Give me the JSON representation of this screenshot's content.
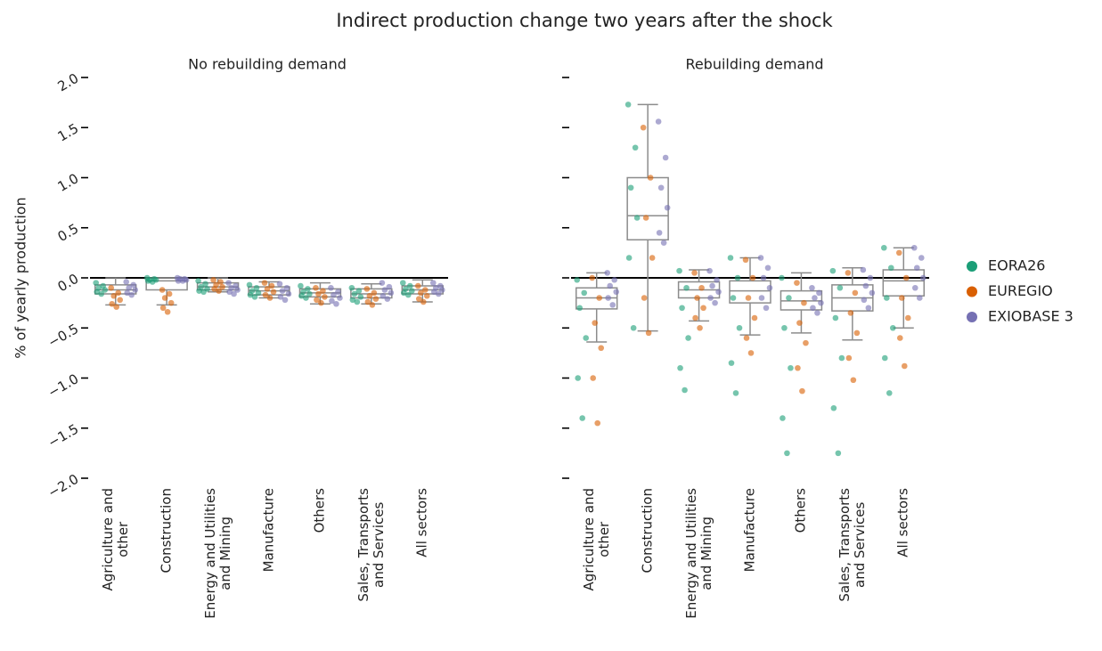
{
  "title": "Indirect production change two years after the shock",
  "chart_data": [
    {
      "type": "box_strip",
      "title": "No rebuilding demand",
      "ylabel": "% of yearly production",
      "categories": [
        "Agriculture and\nother",
        "Construction",
        "Energy and Utilities\nand Mining",
        "Manufacture",
        "Others",
        "Sales, Transports\nand Services",
        "All sectors"
      ],
      "ylim": [
        -2,
        2
      ],
      "yticks": [
        {
          "value": 2,
          "label": "2.0"
        },
        {
          "value": 1.5,
          "label": "1.5"
        },
        {
          "value": 1,
          "label": "1.0"
        },
        {
          "value": 0.5,
          "label": "0.5"
        },
        {
          "value": 0,
          "label": "0.0"
        },
        {
          "value": -0.5,
          "label": "−0.5"
        },
        {
          "value": -1,
          "label": "−1.0"
        },
        {
          "value": -1.5,
          "label": "−1.5"
        },
        {
          "value": -2,
          "label": "−2.0"
        }
      ],
      "zero_line": true,
      "boxes": [
        [
          -0.27,
          -0.16,
          -0.12,
          -0.07,
          0.0
        ],
        [
          -0.27,
          -0.12,
          -0.03,
          0.0,
          0.0
        ],
        [
          -0.14,
          -0.12,
          -0.09,
          -0.05,
          0.0
        ],
        [
          -0.2,
          -0.17,
          -0.13,
          -0.09,
          -0.04
        ],
        [
          -0.26,
          -0.19,
          -0.15,
          -0.11,
          -0.05
        ],
        [
          -0.26,
          -0.2,
          -0.16,
          -0.11,
          -0.06
        ],
        [
          -0.24,
          -0.16,
          -0.12,
          -0.08,
          -0.02
        ]
      ],
      "series": [
        {
          "color": "#1b9e77",
          "values": [
            [
              -0.05,
              -0.08,
              -0.1,
              -0.12,
              -0.14,
              -0.16
            ],
            [
              0.0,
              -0.01,
              -0.02,
              -0.02,
              -0.03,
              -0.04
            ],
            [
              -0.03,
              -0.06,
              -0.09,
              -0.11,
              -0.13,
              -0.14
            ],
            [
              -0.07,
              -0.1,
              -0.13,
              -0.15,
              -0.17,
              -0.19
            ],
            [
              -0.08,
              -0.11,
              -0.14,
              -0.16,
              -0.18,
              -0.2
            ],
            [
              -0.1,
              -0.13,
              -0.16,
              -0.19,
              -0.22,
              -0.24
            ],
            [
              -0.05,
              -0.08,
              -0.11,
              -0.13,
              -0.15,
              -0.17
            ]
          ]
        },
        {
          "color": "#d95f02",
          "values": [
            [
              -0.1,
              -0.15,
              -0.18,
              -0.22,
              -0.26,
              -0.29
            ],
            [
              -0.12,
              -0.16,
              -0.2,
              -0.25,
              -0.3,
              -0.34
            ],
            [
              -0.02,
              -0.04,
              -0.07,
              -0.09,
              -0.11,
              -0.13
            ],
            [
              -0.05,
              -0.08,
              -0.11,
              -0.14,
              -0.17,
              -0.2
            ],
            [
              -0.1,
              -0.13,
              -0.16,
              -0.19,
              -0.22,
              -0.25
            ],
            [
              -0.11,
              -0.15,
              -0.18,
              -0.21,
              -0.24,
              -0.27
            ],
            [
              -0.08,
              -0.12,
              -0.15,
              -0.18,
              -0.21,
              -0.24
            ]
          ]
        },
        {
          "color": "#7570b3",
          "values": [
            [
              -0.04,
              -0.07,
              -0.1,
              -0.12,
              -0.15,
              -0.17
            ],
            [
              0.0,
              -0.01,
              -0.01,
              -0.02,
              -0.03,
              -0.03
            ],
            [
              -0.05,
              -0.08,
              -0.1,
              -0.12,
              -0.14,
              -0.16
            ],
            [
              -0.06,
              -0.1,
              -0.13,
              -0.16,
              -0.19,
              -0.22
            ],
            [
              -0.1,
              -0.14,
              -0.17,
              -0.2,
              -0.23,
              -0.26
            ],
            [
              -0.05,
              -0.09,
              -0.12,
              -0.15,
              -0.18,
              -0.21
            ],
            [
              -0.05,
              -0.08,
              -0.1,
              -0.12,
              -0.14,
              -0.16
            ]
          ]
        }
      ]
    },
    {
      "type": "box_strip",
      "title": "Rebuilding demand",
      "categories": [
        "Agriculture and\nother",
        "Construction",
        "Energy and Utilities\nand Mining",
        "Manufacture",
        "Others",
        "Sales, Transports\nand Services",
        "All sectors"
      ],
      "ylim": [
        -2,
        2
      ],
      "zero_line": true,
      "legend": "right",
      "boxes": [
        [
          -0.64,
          -0.31,
          -0.2,
          -0.1,
          0.05
        ],
        [
          -0.53,
          0.38,
          0.62,
          1.0,
          1.73
        ],
        [
          -0.43,
          -0.2,
          -0.12,
          -0.04,
          0.08
        ],
        [
          -0.57,
          -0.25,
          -0.13,
          -0.03,
          0.2
        ],
        [
          -0.55,
          -0.32,
          -0.23,
          -0.13,
          0.05
        ],
        [
          -0.62,
          -0.33,
          -0.2,
          -0.07,
          0.1
        ],
        [
          -0.5,
          -0.18,
          -0.03,
          0.08,
          0.3
        ]
      ],
      "series": [
        {
          "name": "EORA26",
          "color": "#1b9e77",
          "values": [
            [
              -0.02,
              -0.15,
              -0.3,
              -0.6,
              -1.0,
              -1.4
            ],
            [
              1.73,
              1.3,
              0.9,
              0.6,
              0.2,
              -0.5
            ],
            [
              0.07,
              -0.1,
              -0.3,
              -0.6,
              -0.9,
              -1.12
            ],
            [
              0.2,
              0.0,
              -0.2,
              -0.5,
              -0.85,
              -1.15
            ],
            [
              0.0,
              -0.2,
              -0.5,
              -0.9,
              -1.4,
              -1.75
            ],
            [
              0.07,
              -0.1,
              -0.4,
              -0.8,
              -1.3,
              -1.75
            ],
            [
              0.3,
              0.1,
              -0.2,
              -0.5,
              -0.8,
              -1.15
            ]
          ]
        },
        {
          "name": "EUREGIO",
          "color": "#d95f02",
          "values": [
            [
              0.0,
              -0.2,
              -0.45,
              -0.7,
              -1.0,
              -1.45
            ],
            [
              1.5,
              1.0,
              0.6,
              0.2,
              -0.2,
              -0.55
            ],
            [
              0.05,
              -0.1,
              -0.2,
              -0.3,
              -0.4,
              -0.5
            ],
            [
              0.18,
              0.0,
              -0.2,
              -0.4,
              -0.6,
              -0.75
            ],
            [
              -0.05,
              -0.25,
              -0.45,
              -0.65,
              -0.9,
              -1.13
            ],
            [
              0.05,
              -0.15,
              -0.35,
              -0.55,
              -0.8,
              -1.02
            ],
            [
              0.25,
              0.0,
              -0.2,
              -0.4,
              -0.6,
              -0.88
            ]
          ]
        },
        {
          "name": "EXIOBASE 3",
          "color": "#7570b3",
          "values": [
            [
              0.05,
              -0.02,
              -0.08,
              -0.14,
              -0.2,
              -0.27
            ],
            [
              1.56,
              1.2,
              0.9,
              0.7,
              0.45,
              0.35
            ],
            [
              0.07,
              -0.02,
              -0.08,
              -0.14,
              -0.2,
              -0.25
            ],
            [
              0.2,
              0.1,
              0.0,
              -0.1,
              -0.2,
              -0.3
            ],
            [
              -0.1,
              -0.15,
              -0.2,
              -0.25,
              -0.3,
              -0.35
            ],
            [
              0.08,
              0.0,
              -0.08,
              -0.15,
              -0.22,
              -0.3
            ],
            [
              0.3,
              0.2,
              0.1,
              0.0,
              -0.1,
              -0.2
            ]
          ]
        }
      ]
    }
  ]
}
